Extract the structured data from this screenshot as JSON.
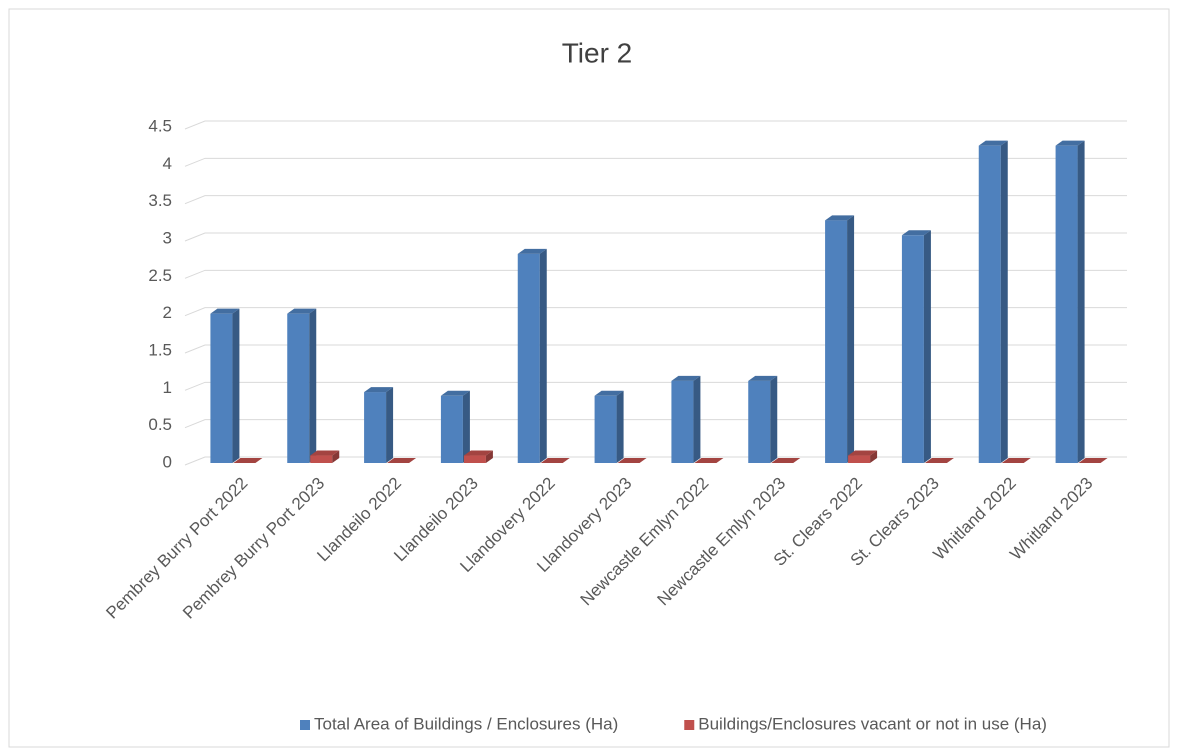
{
  "chart_data": {
    "type": "bar",
    "title": "Tier 2",
    "categories": [
      "Pembrey Burry Port 2022",
      "Pembrey Burry Port 2023",
      "Llandeilo 2022",
      "Llandeilo 2023",
      "Llandovery 2022",
      "Llandovery 2023",
      "Newcastle Emlyn 2022",
      "Newcastle Emlyn 2023",
      "St. Clears 2022",
      "St. Clears 2023",
      "Whitland 2022",
      "Whitland 2023"
    ],
    "series": [
      {
        "name": "Total Area of Buildings / Enclosures (Ha)",
        "color": "#4f81bd",
        "values": [
          2,
          2,
          0.95,
          0.9,
          2.8,
          0.9,
          1.1,
          1.1,
          3.25,
          3.05,
          4.25,
          4.25
        ]
      },
      {
        "name": "Buildings/Enclosures vacant or not in use (Ha)",
        "color": "#c0504d",
        "values": [
          0,
          0.1,
          0,
          0.1,
          0,
          0,
          0,
          0,
          0.1,
          0,
          0,
          0
        ]
      }
    ],
    "ylim": [
      0,
      4.5
    ],
    "yticks": [
      0,
      0.5,
      1,
      1.5,
      2,
      2.5,
      3,
      3.5,
      4,
      4.5
    ],
    "grid": true,
    "legend": "bottom"
  }
}
